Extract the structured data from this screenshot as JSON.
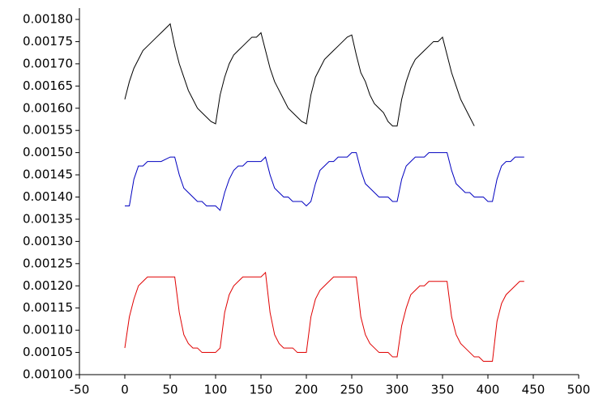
{
  "chart_data": {
    "type": "line",
    "x": [
      0,
      5,
      10,
      15,
      20,
      25,
      30,
      35,
      40,
      45,
      50,
      55,
      60,
      65,
      70,
      75,
      80,
      85,
      90,
      95,
      100,
      105,
      110,
      115,
      120,
      125,
      130,
      135,
      140,
      145,
      150,
      155,
      160,
      165,
      170,
      175,
      180,
      185,
      190,
      195,
      200,
      205,
      210,
      215,
      220,
      225,
      230,
      235,
      240,
      245,
      250,
      255,
      260,
      265,
      270,
      275,
      280,
      285,
      290,
      295,
      300,
      305,
      310,
      315,
      320,
      325,
      330,
      335,
      340,
      345,
      350,
      355,
      360,
      365,
      370,
      375,
      380,
      385,
      390,
      395,
      400,
      405,
      410,
      415,
      420,
      425,
      430,
      435,
      440
    ],
    "series": [
      {
        "color": "#000000",
        "values": [
          0.00162,
          0.00166,
          0.00169,
          0.00171,
          0.00173,
          0.00174,
          0.00175,
          0.00176,
          0.00177,
          0.00178,
          0.00179,
          0.00174,
          0.0017,
          0.00167,
          0.00164,
          0.00162,
          0.0016,
          0.00159,
          0.00158,
          0.00157,
          0.001565,
          0.00163,
          0.00167,
          0.0017,
          0.00172,
          0.00173,
          0.00174,
          0.00175,
          0.00176,
          0.00176,
          0.00177,
          0.00173,
          0.00169,
          0.00166,
          0.00164,
          0.00162,
          0.0016,
          0.00159,
          0.00158,
          0.00157,
          0.001565,
          0.00163,
          0.00167,
          0.00169,
          0.00171,
          0.00172,
          0.00173,
          0.00174,
          0.00175,
          0.00176,
          0.001765,
          0.00172,
          0.00168,
          0.00166,
          0.00163,
          0.00161,
          0.0016,
          0.00159,
          0.00157,
          0.00156,
          0.00156,
          0.00162,
          0.00166,
          0.00169,
          0.00171,
          0.00172,
          0.00173,
          0.00174,
          0.00175,
          0.00175,
          0.00176,
          0.00172,
          0.00168,
          0.00165,
          0.00162,
          0.0016,
          0.00158,
          0.00156,
          null,
          null,
          null,
          null,
          null,
          null,
          null,
          null,
          null,
          null,
          null
        ]
      },
      {
        "color": "#0000c0",
        "values": [
          0.00138,
          0.00138,
          0.00144,
          0.00147,
          0.00147,
          0.00148,
          0.00148,
          0.00148,
          0.00148,
          0.001485,
          0.00149,
          0.00149,
          0.00145,
          0.00142,
          0.00141,
          0.0014,
          0.00139,
          0.00139,
          0.00138,
          0.00138,
          0.00138,
          0.00137,
          0.00141,
          0.00144,
          0.00146,
          0.00147,
          0.00147,
          0.00148,
          0.00148,
          0.00148,
          0.00148,
          0.00149,
          0.00145,
          0.00142,
          0.00141,
          0.0014,
          0.0014,
          0.00139,
          0.00139,
          0.00139,
          0.00138,
          0.00139,
          0.00143,
          0.00146,
          0.00147,
          0.00148,
          0.00148,
          0.00149,
          0.00149,
          0.00149,
          0.0015,
          0.0015,
          0.00146,
          0.00143,
          0.00142,
          0.00141,
          0.0014,
          0.0014,
          0.0014,
          0.00139,
          0.00139,
          0.00144,
          0.00147,
          0.00148,
          0.00149,
          0.00149,
          0.00149,
          0.0015,
          0.0015,
          0.0015,
          0.0015,
          0.0015,
          0.00146,
          0.00143,
          0.00142,
          0.00141,
          0.00141,
          0.0014,
          0.0014,
          0.0014,
          0.00139,
          0.00139,
          0.00144,
          0.00147,
          0.00148,
          0.00148,
          0.00149,
          0.00149,
          0.00149
        ]
      },
      {
        "color": "#e00000",
        "values": [
          0.00106,
          0.00113,
          0.00117,
          0.0012,
          0.00121,
          0.00122,
          0.00122,
          0.00122,
          0.00122,
          0.00122,
          0.00122,
          0.00122,
          0.00114,
          0.00109,
          0.00107,
          0.00106,
          0.00106,
          0.00105,
          0.00105,
          0.00105,
          0.00105,
          0.00106,
          0.00114,
          0.00118,
          0.0012,
          0.00121,
          0.00122,
          0.00122,
          0.00122,
          0.00122,
          0.00122,
          0.00123,
          0.00114,
          0.00109,
          0.00107,
          0.00106,
          0.00106,
          0.00106,
          0.00105,
          0.00105,
          0.00105,
          0.00113,
          0.00117,
          0.00119,
          0.0012,
          0.00121,
          0.00122,
          0.00122,
          0.00122,
          0.00122,
          0.00122,
          0.00122,
          0.00113,
          0.00109,
          0.00107,
          0.00106,
          0.00105,
          0.00105,
          0.00105,
          0.00104,
          0.00104,
          0.00111,
          0.00115,
          0.00118,
          0.00119,
          0.0012,
          0.0012,
          0.00121,
          0.00121,
          0.00121,
          0.00121,
          0.00121,
          0.00113,
          0.00109,
          0.00107,
          0.00106,
          0.00105,
          0.00104,
          0.00104,
          0.00103,
          0.00103,
          0.00103,
          0.00112,
          0.00116,
          0.00118,
          0.00119,
          0.0012,
          0.00121,
          0.00121
        ]
      }
    ],
    "xlim": [
      -50,
      500
    ],
    "xticks": [
      -50,
      0,
      50,
      100,
      150,
      200,
      250,
      300,
      350,
      400,
      450,
      500
    ],
    "ylim": [
      0.001,
      0.0018
    ],
    "yticks": [
      {
        "value": 0.001,
        "label": "0.00100"
      },
      {
        "value": 0.00105,
        "label": "0.00105"
      },
      {
        "value": 0.0011,
        "label": "0.00110"
      },
      {
        "value": 0.00115,
        "label": "0.00115"
      },
      {
        "value": 0.0012,
        "label": "0.00120"
      },
      {
        "value": 0.00125,
        "label": "0.00125"
      },
      {
        "value": 0.0013,
        "label": "0.00130"
      },
      {
        "value": 0.00135,
        "label": "0.00135"
      },
      {
        "value": 0.0014,
        "label": "0.00140"
      },
      {
        "value": 0.00145,
        "label": "0.00145"
      },
      {
        "value": 0.0015,
        "label": "0.00150"
      },
      {
        "value": 0.00155,
        "label": "0.00155"
      },
      {
        "value": 0.0016,
        "label": "0.00160"
      },
      {
        "value": 0.00165,
        "label": "0.00165"
      },
      {
        "value": 0.0017,
        "label": "0.00170"
      },
      {
        "value": 0.00175,
        "label": "0.00175"
      },
      {
        "value": 0.0018,
        "label": "0.00180"
      }
    ],
    "grid": false
  }
}
